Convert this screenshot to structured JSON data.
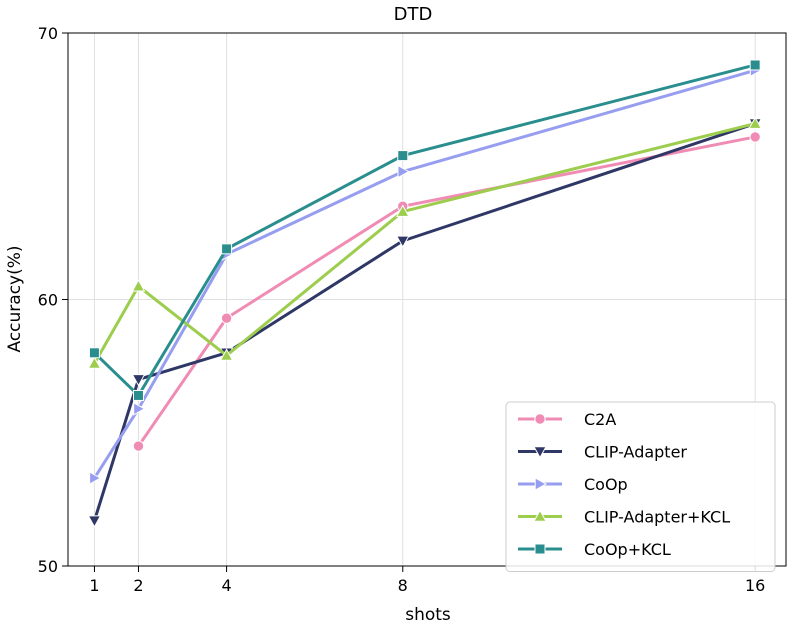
{
  "chart_data": {
    "type": "line",
    "title": "DTD",
    "xlabel": "shots",
    "ylabel": "Accuracy(%)",
    "x": [
      1,
      2,
      4,
      8,
      16
    ],
    "x_ticks": [
      "1",
      "2",
      "4",
      "8",
      "16"
    ],
    "y_ticks": [
      "50",
      "60",
      "70"
    ],
    "xlim": [
      0.4,
      16.7
    ],
    "ylim": [
      50,
      70
    ],
    "grid": true,
    "legend_position": "lower-right",
    "series": [
      {
        "name": "C2A",
        "color": "#f08cb4",
        "marker": "circle",
        "values": [
          null,
          54.5,
          59.3,
          63.5,
          66.1
        ]
      },
      {
        "name": "CLIP-Adapter",
        "color": "#2e3766",
        "marker": "triangle-down",
        "values": [
          51.7,
          57.0,
          58.0,
          62.2,
          66.6
        ]
      },
      {
        "name": "CoOp",
        "color": "#979ef0",
        "marker": "triangle-right",
        "values": [
          53.3,
          55.9,
          61.7,
          64.8,
          68.6
        ]
      },
      {
        "name": "CLIP-Adapter+KCL",
        "color": "#9ccd4c",
        "marker": "triangle-up",
        "values": [
          57.6,
          60.5,
          57.9,
          63.3,
          66.6
        ]
      },
      {
        "name": "CoOp+KCL",
        "color": "#2a8e8e",
        "marker": "square",
        "values": [
          58.0,
          56.4,
          61.9,
          65.4,
          68.8
        ]
      }
    ]
  }
}
